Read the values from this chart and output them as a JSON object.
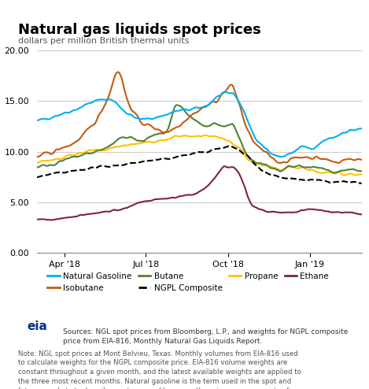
{
  "title": "Natural gas liquids spot prices",
  "subtitle": "dollars per million British thermal units",
  "ylim": [
    0.0,
    20.0
  ],
  "yticks": [
    0.0,
    5.0,
    10.0,
    15.0,
    20.0
  ],
  "bg_color": "#ffffff",
  "plot_bg_color": "#ffffff",
  "legend_bg": "#f0f0f0",
  "sources_text": "Sources: NGL spot prices from Bloomberg, L.P., and weights for NGPL composite\nprice from EIA-816, Monthly Natural Gas Liquids Report.",
  "note_text": "Note: NGL spot prices at Mont Belvieu, Texas. Monthly volumes from EIA-816 used\nto calculate weights for the NGPL composite price. EIA-816 volume weights are\nconstant throughout a given month, and the latest available weights are applied to\nthe three most recent months. Natural gasoline is the term used in the spot and\nfutures markets to describe pentanes and hexanes, the primary components of\npentanes plus.",
  "series": {
    "natural_gasoline": {
      "label": "Natural Gasoline",
      "color": "#00b0f0",
      "linestyle": "-",
      "linewidth": 1.5
    },
    "isobutane": {
      "label": "Isobutane",
      "color": "#c55a11",
      "linestyle": "-",
      "linewidth": 1.5
    },
    "butane": {
      "label": "Butane",
      "color": "#538135",
      "linestyle": "-",
      "linewidth": 1.5
    },
    "ngpl_composite": {
      "label": "NGPL Composite",
      "color": "#000000",
      "linestyle": "--",
      "linewidth": 1.5
    },
    "propane": {
      "label": "Propane",
      "color": "#ffc000",
      "linestyle": "-",
      "linewidth": 1.5
    },
    "ethane": {
      "label": "Ethane",
      "color": "#7b2346",
      "linestyle": "-",
      "linewidth": 1.5
    }
  }
}
